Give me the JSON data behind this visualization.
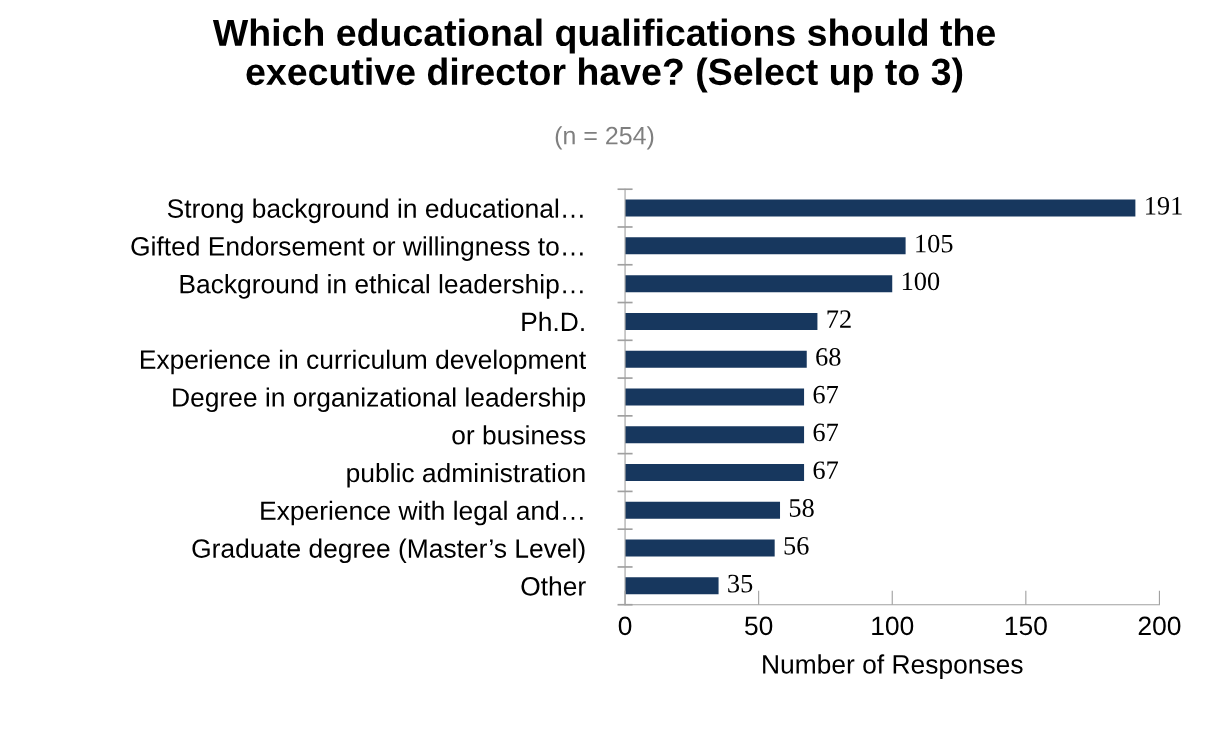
{
  "chart_data": {
    "type": "bar",
    "orientation": "horizontal",
    "title": "Which educational qualifications should the\nexecutive director have? (Select up to 3)",
    "subtitle": "(n = 254)",
    "xlabel": "Number of Responses",
    "categories": [
      "Strong background in educational…",
      "Gifted Endorsement or willingness to…",
      "Background in ethical leadership…",
      "Ph.D.",
      "Experience in curriculum development",
      "Degree in organizational leadership",
      "or business",
      "public administration",
      "Experience with legal and…",
      "Graduate degree (Master’s Level)",
      "Other"
    ],
    "values": [
      191,
      105,
      100,
      72,
      68,
      67,
      67,
      67,
      58,
      56,
      35
    ],
    "color": "#17375e",
    "xlim": [
      0,
      200
    ],
    "xticks": [
      0,
      50,
      100,
      150,
      200
    ],
    "data_labels": true,
    "grid": false,
    "legend": false
  }
}
